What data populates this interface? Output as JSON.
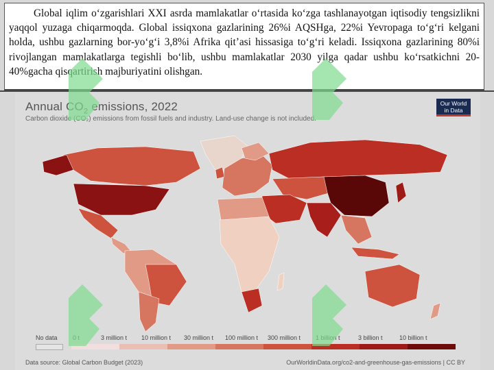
{
  "paragraph": "Global iqlim o‘zgarishlari XXI asrda mamlakatlar o‘rtasida ko‘zga tashlanayotgan iqtisodiy tengsizlikni yaqqol yuzaga chiqarmoqda. Global issiqxona gazlarining 26%i AQSHga, 22%i Yevropaga to‘g‘ri kelgani holda, ushbu gazlarning bor-yo‘g‘i 3,8%i Afrika qit’asi hissasiga to‘g‘ri keladi. Issiqxona gazlarining 80%i rivojlangan mamlakatlarga tegishli bo‘lib, ushbu mamlakatlar 2030 yilga qadar ushbu ko‘rsatkichni 20-40%gacha qisqartirish majburiyatini olishgan.",
  "figure": {
    "title_main": "Annual CO",
    "title_sub2": "2",
    "title_rest": " emissions, 2022",
    "subtitle": "Carbon dioxide (CO₂) emissions from fossil fuels and industry. Land-use change is not included.",
    "logo_line1": "Our World",
    "logo_line2": "in Data",
    "source": "Data source: Global Carbon Budget (2023)",
    "url": "OurWorldinData.org/co2-and-greenhouse-gas-emissions | CC BY"
  },
  "legend": {
    "no_data": "No data",
    "bins": [
      "0 t",
      "3 million t",
      "10 million t",
      "30 million t",
      "100 million t",
      "300 million t",
      "1 billion t",
      "3 billion t",
      "10 billion t"
    ],
    "colors": [
      "#f2dede",
      "#e8bfb2",
      "#e09a86",
      "#d67560",
      "#cd533f",
      "#bb2e24",
      "#9e1a16",
      "#6e0b0b"
    ],
    "no_data_color": "#e4e4e4"
  },
  "colors": {
    "usa": "#8b1212",
    "china": "#5a0707",
    "russia": "#bb2e24",
    "canada": "#cd533f",
    "europe": "#d67560",
    "india": "#a81e1a",
    "africa": "#f0d0c0",
    "south_america": "#e09a86",
    "australia": "#cd533f",
    "watermark": "#7fdc8f"
  }
}
